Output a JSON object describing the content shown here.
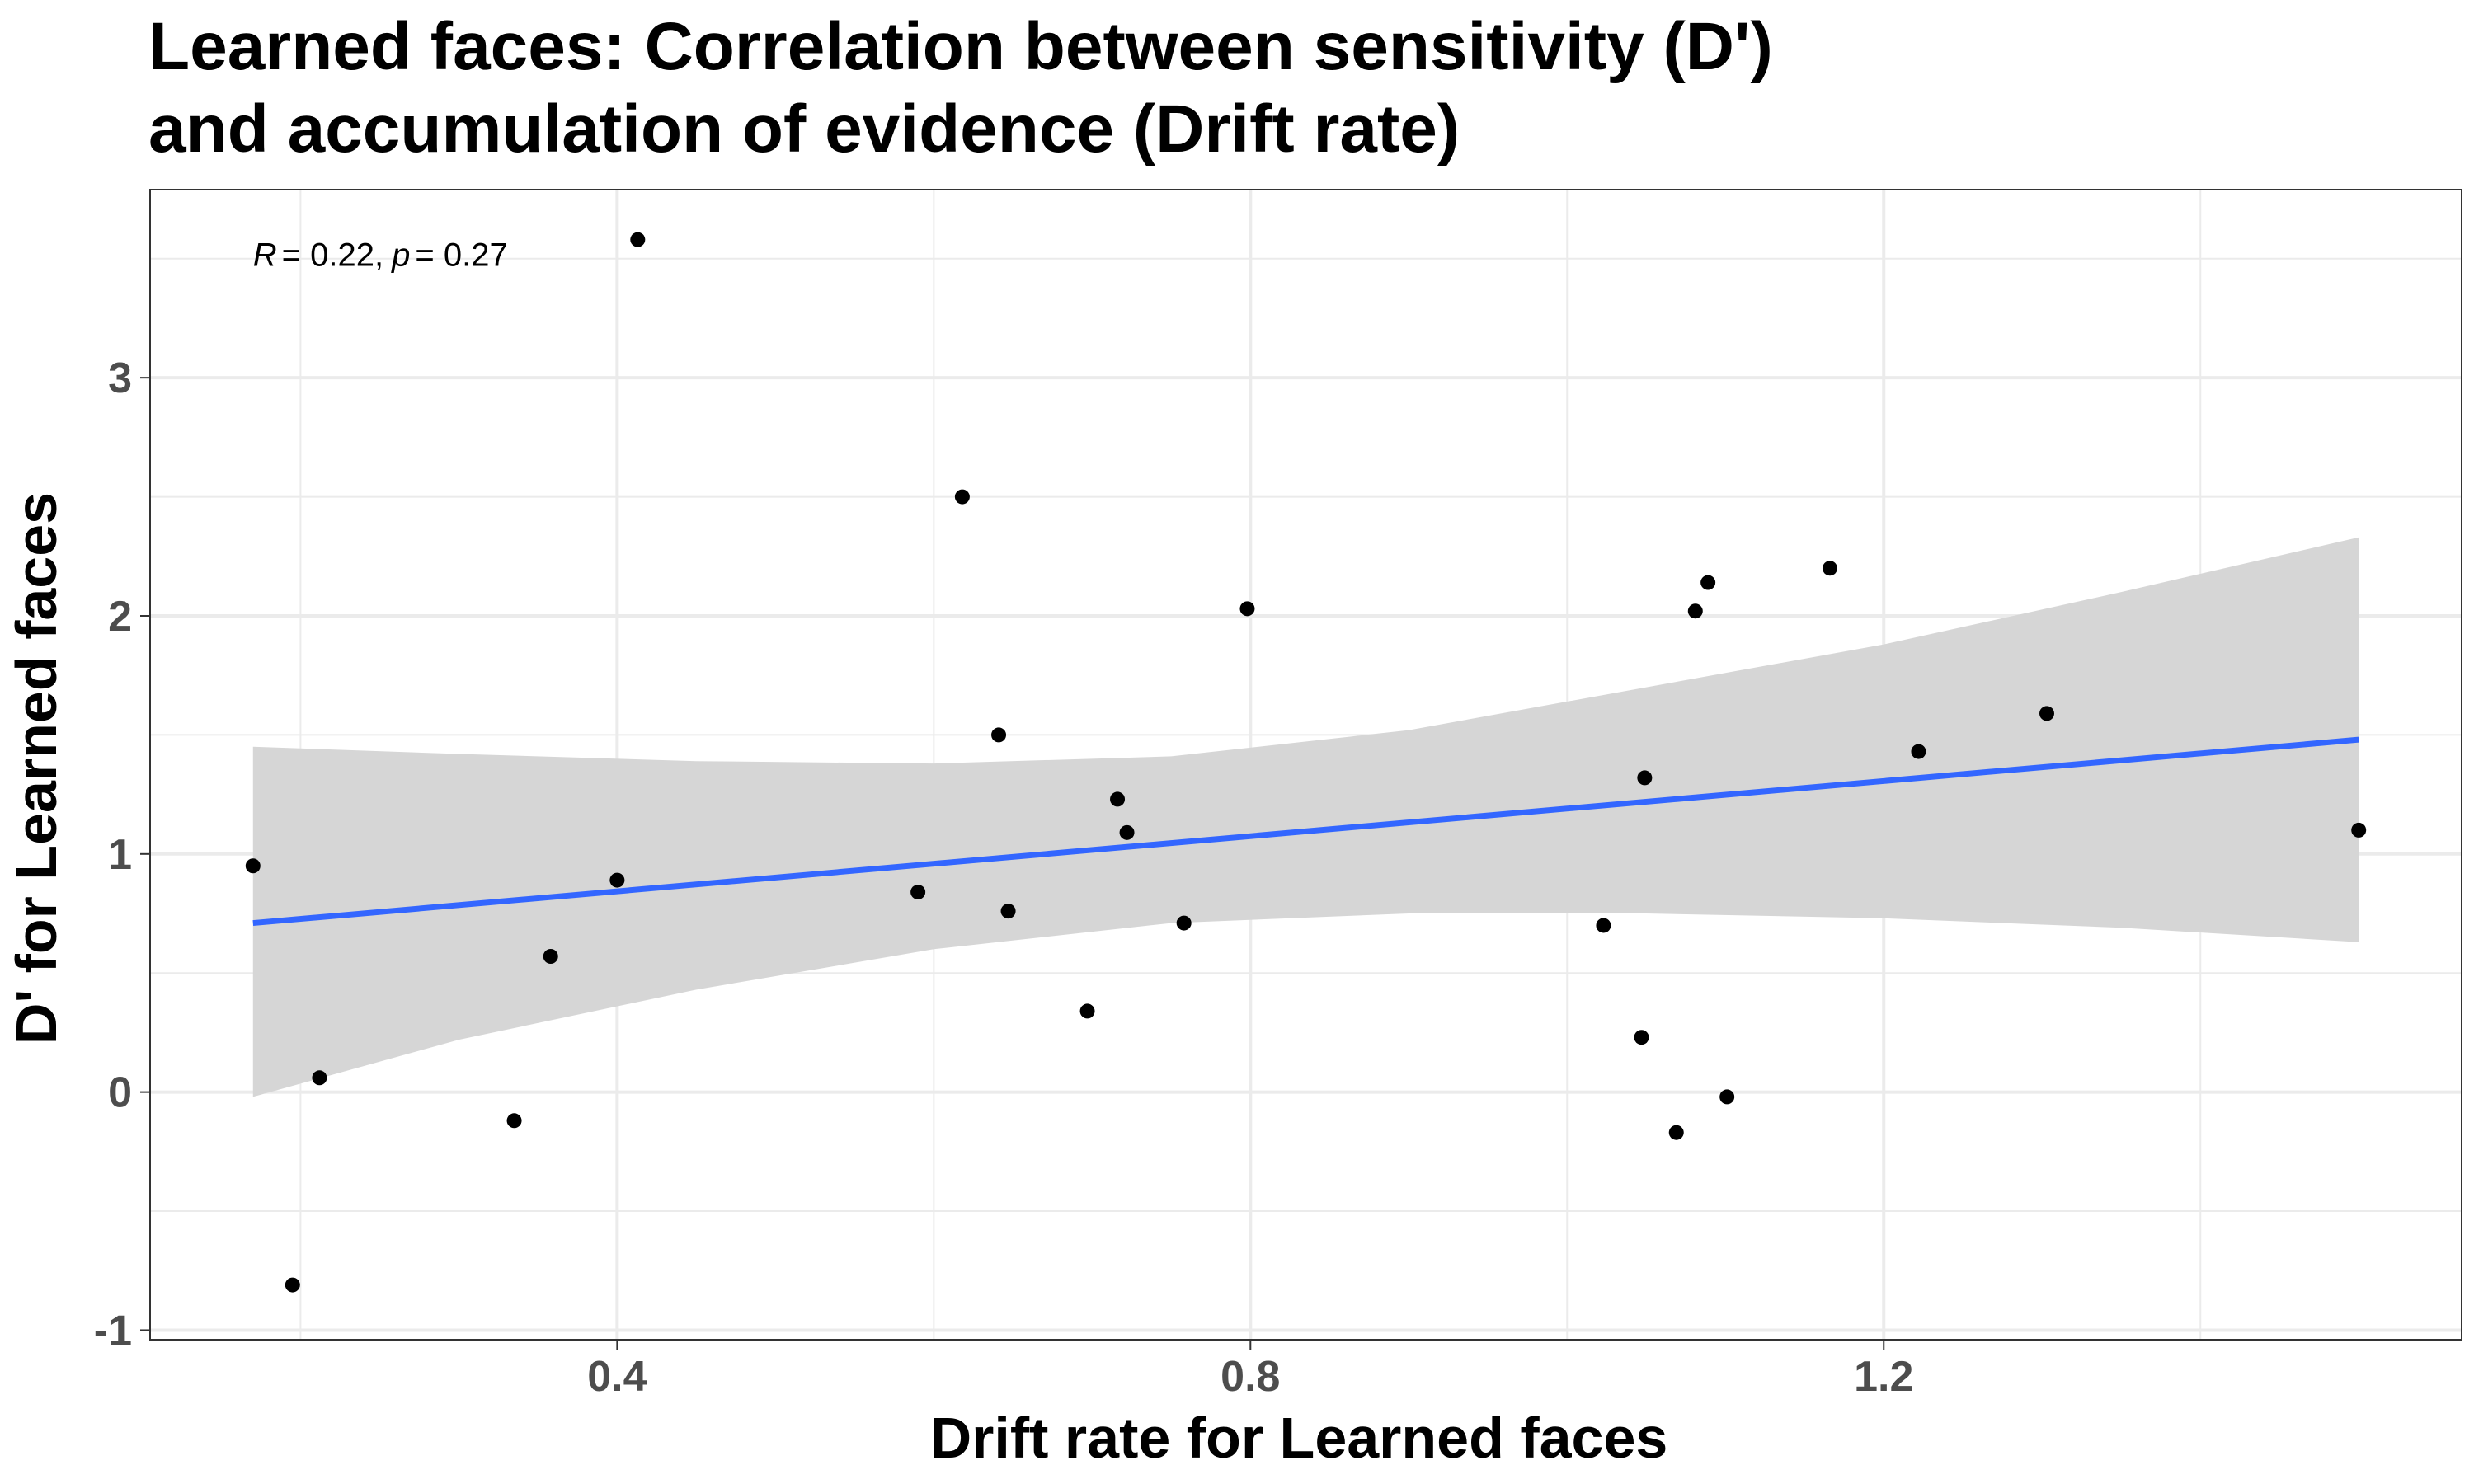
{
  "chart_data": {
    "type": "scatter",
    "title_lines": [
      "Learned faces: Correlation between sensitivity (D')",
      "and accumulation of evidence (Drift rate)"
    ],
    "xlabel": "Drift rate for Learned faces",
    "ylabel": "D' for Learned faces",
    "xlim": [
      0.105,
      1.565
    ],
    "ylim": [
      -1.04,
      3.79
    ],
    "x_ticks": [
      0.4,
      0.8,
      1.2
    ],
    "x_tick_labels": [
      "0.4",
      "0.8",
      "1.2"
    ],
    "x_minor_gridlines": [
      0.2,
      0.6,
      1.0,
      1.4
    ],
    "y_ticks": [
      -1,
      0,
      1,
      2,
      3
    ],
    "y_tick_labels": [
      "-1",
      "0",
      "1",
      "2",
      "3"
    ],
    "y_minor_gridlines": [
      -0.5,
      0.5,
      1.5,
      2.5,
      3.5
    ],
    "grid": true,
    "annotation": {
      "r_symbol": "R",
      "r_value": "= 0.22,",
      "p_symbol": "p",
      "p_value": "= 0.27",
      "x": 0.17,
      "y": 3.47
    },
    "points": [
      {
        "x": 0.17,
        "y": 0.95
      },
      {
        "x": 0.195,
        "y": -0.81
      },
      {
        "x": 0.212,
        "y": 0.06
      },
      {
        "x": 0.335,
        "y": -0.12
      },
      {
        "x": 0.358,
        "y": 0.57
      },
      {
        "x": 0.4,
        "y": 0.89
      },
      {
        "x": 0.413,
        "y": 3.58
      },
      {
        "x": 0.59,
        "y": 0.84
      },
      {
        "x": 0.618,
        "y": 2.5
      },
      {
        "x": 0.641,
        "y": 1.5
      },
      {
        "x": 0.647,
        "y": 0.76
      },
      {
        "x": 0.697,
        "y": 0.34
      },
      {
        "x": 0.716,
        "y": 1.23
      },
      {
        "x": 0.722,
        "y": 1.09
      },
      {
        "x": 0.758,
        "y": 0.71
      },
      {
        "x": 0.798,
        "y": 2.03
      },
      {
        "x": 1.023,
        "y": 0.7
      },
      {
        "x": 1.047,
        "y": 0.23
      },
      {
        "x": 1.049,
        "y": 1.32
      },
      {
        "x": 1.069,
        "y": -0.17
      },
      {
        "x": 1.081,
        "y": 2.02
      },
      {
        "x": 1.089,
        "y": 2.14
      },
      {
        "x": 1.101,
        "y": -0.02
      },
      {
        "x": 1.166,
        "y": 2.2
      },
      {
        "x": 1.222,
        "y": 1.43
      },
      {
        "x": 1.303,
        "y": 1.59
      },
      {
        "x": 1.5,
        "y": 1.1
      }
    ],
    "fit_line": {
      "x": [
        0.17,
        1.5
      ],
      "y": [
        0.71,
        1.48
      ],
      "color": "#3366ff"
    },
    "confidence_band": {
      "color": "#d6d6d6",
      "x": [
        0.17,
        0.3,
        0.45,
        0.6,
        0.75,
        0.9,
        1.05,
        1.2,
        1.35,
        1.5
      ],
      "lower": [
        -0.02,
        0.22,
        0.43,
        0.6,
        0.71,
        0.75,
        0.75,
        0.73,
        0.69,
        0.63
      ],
      "upper": [
        1.45,
        1.42,
        1.39,
        1.38,
        1.41,
        1.52,
        1.7,
        1.88,
        2.1,
        2.33
      ]
    },
    "point_color": "#000000",
    "panel_border_color": "#333333",
    "grid_color": "#ebebeb"
  }
}
